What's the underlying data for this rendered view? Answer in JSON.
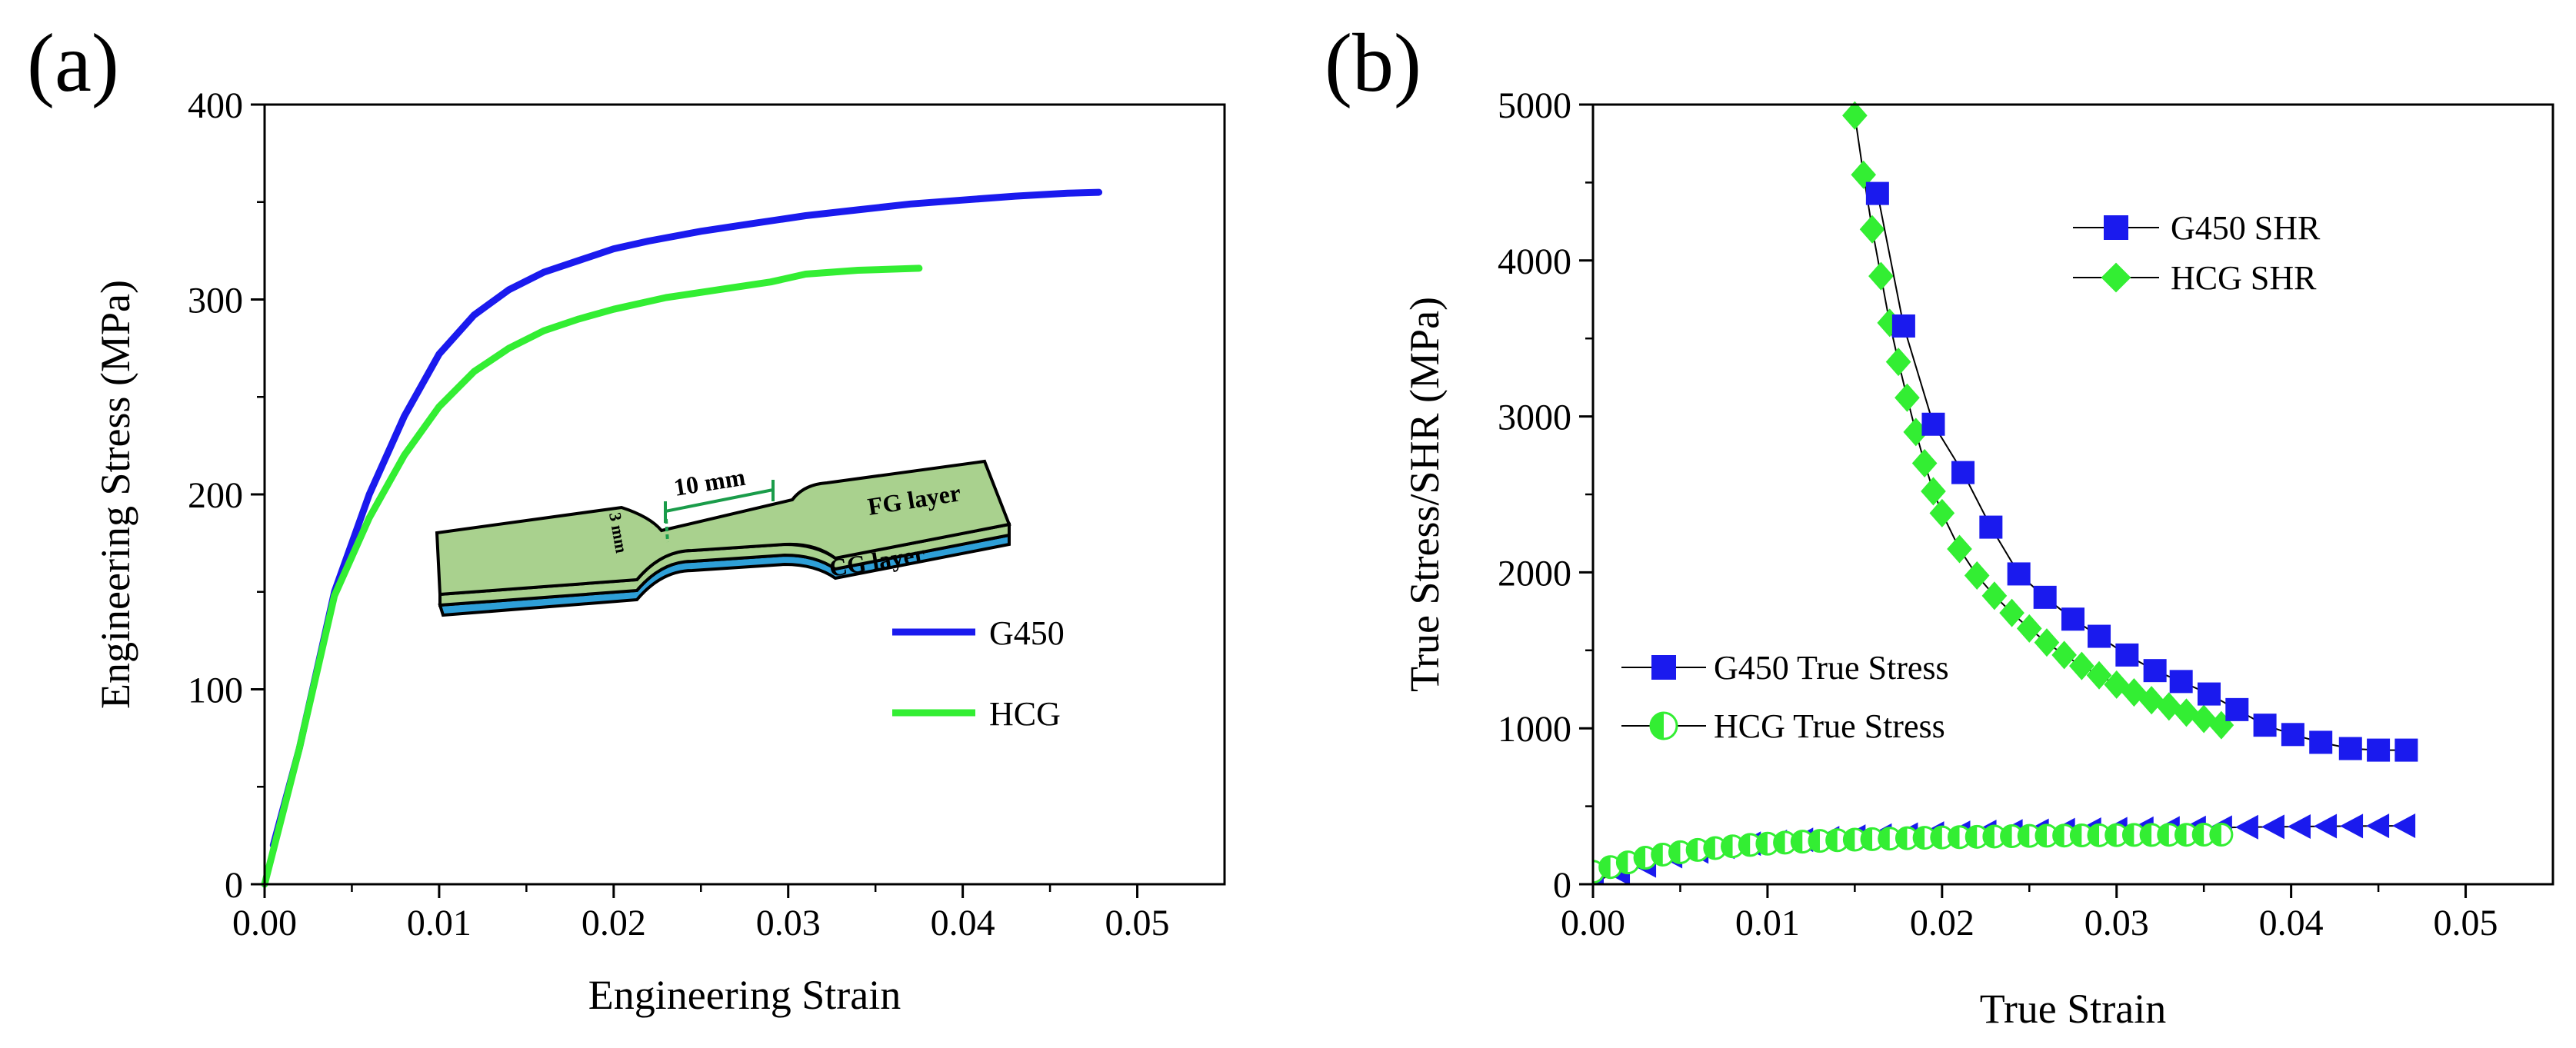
{
  "chart_data": [
    {
      "type": "line",
      "panel_label": "(a)",
      "xlabel": "Engineering Strain",
      "ylabel": "Engineering Stress (MPa)",
      "xlim": [
        0,
        0.055
      ],
      "ylim": [
        0,
        400
      ],
      "xticks": [
        "0.00",
        "0.01",
        "0.02",
        "0.03",
        "0.04",
        "0.05"
      ],
      "yticks": [
        "0",
        "100",
        "200",
        "300",
        "400"
      ],
      "legend_position": "bottom-right",
      "series": [
        {
          "name": "G450",
          "color": "#1a1aee",
          "points": [
            [
              0.0005,
              20
            ],
            [
              0.002,
              70
            ],
            [
              0.004,
              150
            ],
            [
              0.006,
              200
            ],
            [
              0.008,
              240
            ],
            [
              0.01,
              272
            ],
            [
              0.012,
              292
            ],
            [
              0.014,
              305
            ],
            [
              0.016,
              314
            ],
            [
              0.018,
              320
            ],
            [
              0.02,
              326
            ],
            [
              0.022,
              330
            ],
            [
              0.025,
              335
            ],
            [
              0.028,
              339
            ],
            [
              0.031,
              343
            ],
            [
              0.034,
              346
            ],
            [
              0.037,
              349
            ],
            [
              0.04,
              351
            ],
            [
              0.043,
              353
            ],
            [
              0.046,
              354.5
            ],
            [
              0.0478,
              355
            ]
          ]
        },
        {
          "name": "HCG",
          "color": "#33ee33",
          "points": [
            [
              0.0,
              0
            ],
            [
              0.002,
              70
            ],
            [
              0.004,
              148
            ],
            [
              0.006,
              188
            ],
            [
              0.008,
              220
            ],
            [
              0.01,
              245
            ],
            [
              0.012,
              263
            ],
            [
              0.014,
              275
            ],
            [
              0.016,
              284
            ],
            [
              0.018,
              290
            ],
            [
              0.02,
              295
            ],
            [
              0.023,
              301
            ],
            [
              0.026,
              305
            ],
            [
              0.029,
              309
            ],
            [
              0.031,
              313
            ],
            [
              0.034,
              315
            ],
            [
              0.0375,
              316
            ]
          ]
        }
      ],
      "inset": {
        "dimension_length": "10 mm",
        "dimension_width": "3 mm",
        "top_layer": "FG layer",
        "bottom_layer": "CG layer",
        "colors": {
          "fg": "#a9d18e",
          "cg": "#2e9fd8",
          "marker": "#1a9c4a"
        }
      }
    },
    {
      "type": "scatter",
      "panel_label": "(b)",
      "xlabel": "True Strain",
      "ylabel": "True Stress/SHR (MPa)",
      "xlim": [
        0,
        0.055
      ],
      "ylim": [
        0,
        5000
      ],
      "xticks": [
        "0.00",
        "0.01",
        "0.02",
        "0.03",
        "0.04",
        "0.05"
      ],
      "yticks": [
        "0",
        "1000",
        "2000",
        "3000",
        "4000",
        "5000"
      ],
      "series": [
        {
          "name": "G450 SHR",
          "marker": "square",
          "color": "#1a1aee",
          "legend_position": "top-center",
          "points": [
            [
              0.0163,
              4430
            ],
            [
              0.0178,
              3580
            ],
            [
              0.0195,
              2950
            ],
            [
              0.0212,
              2640
            ],
            [
              0.0228,
              2290
            ],
            [
              0.0244,
              1990
            ],
            [
              0.0259,
              1840
            ],
            [
              0.0275,
              1700
            ],
            [
              0.029,
              1590
            ],
            [
              0.0306,
              1470
            ],
            [
              0.0322,
              1370
            ],
            [
              0.0337,
              1300
            ],
            [
              0.0353,
              1220
            ],
            [
              0.0369,
              1120
            ],
            [
              0.0385,
              1020
            ],
            [
              0.0401,
              960
            ],
            [
              0.0417,
              910
            ],
            [
              0.0434,
              870
            ],
            [
              0.045,
              860
            ],
            [
              0.0466,
              860
            ]
          ]
        },
        {
          "name": "HCG SHR",
          "marker": "diamond",
          "color": "#33ee33",
          "legend_position": "top-center",
          "points": [
            [
              0.015,
              4930
            ],
            [
              0.0155,
              4550
            ],
            [
              0.016,
              4200
            ],
            [
              0.0165,
              3900
            ],
            [
              0.017,
              3600
            ],
            [
              0.0175,
              3350
            ],
            [
              0.018,
              3120
            ],
            [
              0.0185,
              2900
            ],
            [
              0.019,
              2700
            ],
            [
              0.0195,
              2520
            ],
            [
              0.02,
              2380
            ],
            [
              0.021,
              2150
            ],
            [
              0.022,
              1980
            ],
            [
              0.023,
              1850
            ],
            [
              0.024,
              1740
            ],
            [
              0.025,
              1640
            ],
            [
              0.026,
              1550
            ],
            [
              0.027,
              1470
            ],
            [
              0.028,
              1400
            ],
            [
              0.029,
              1340
            ],
            [
              0.03,
              1280
            ],
            [
              0.031,
              1230
            ],
            [
              0.032,
              1180
            ],
            [
              0.033,
              1140
            ],
            [
              0.034,
              1100
            ],
            [
              0.035,
              1060
            ],
            [
              0.036,
              1020
            ]
          ]
        },
        {
          "name": "G450 True Stress",
          "marker": "triangle-left",
          "color": "#1a1aee",
          "legend_position": "bottom-left",
          "points": [
            [
              0.0,
              20
            ],
            [
              0.0015,
              70
            ],
            [
              0.003,
              120
            ],
            [
              0.0045,
              180
            ],
            [
              0.006,
              210
            ],
            [
              0.0075,
              240
            ],
            [
              0.009,
              260
            ],
            [
              0.0105,
              272
            ],
            [
              0.012,
              285
            ],
            [
              0.0135,
              295
            ],
            [
              0.015,
              305
            ],
            [
              0.0165,
              312
            ],
            [
              0.018,
              318
            ],
            [
              0.0195,
              325
            ],
            [
              0.021,
              330
            ],
            [
              0.0225,
              335
            ],
            [
              0.024,
              339
            ],
            [
              0.0255,
              343
            ],
            [
              0.027,
              347
            ],
            [
              0.0285,
              350
            ],
            [
              0.03,
              353
            ],
            [
              0.0315,
              356
            ],
            [
              0.033,
              358
            ],
            [
              0.0345,
              361
            ],
            [
              0.036,
              363
            ],
            [
              0.0375,
              366
            ],
            [
              0.039,
              368
            ],
            [
              0.0405,
              370
            ],
            [
              0.042,
              372
            ],
            [
              0.0435,
              373
            ],
            [
              0.045,
              374
            ],
            [
              0.0465,
              375
            ]
          ]
        },
        {
          "name": "HCG True Stress",
          "marker": "half-circle",
          "color": "#33ee33",
          "legend_position": "bottom-left",
          "points": [
            [
              0.0,
              80
            ],
            [
              0.001,
              110
            ],
            [
              0.002,
              140
            ],
            [
              0.003,
              170
            ],
            [
              0.004,
              190
            ],
            [
              0.005,
              205
            ],
            [
              0.006,
              220
            ],
            [
              0.007,
              232
            ],
            [
              0.008,
              243
            ],
            [
              0.009,
              252
            ],
            [
              0.01,
              260
            ],
            [
              0.011,
              267
            ],
            [
              0.012,
              273
            ],
            [
              0.013,
              278
            ],
            [
              0.014,
              282
            ],
            [
              0.015,
              286
            ],
            [
              0.016,
              289
            ],
            [
              0.017,
              292
            ],
            [
              0.018,
              295
            ],
            [
              0.019,
              298
            ],
            [
              0.02,
              300
            ],
            [
              0.021,
              302
            ],
            [
              0.022,
              304
            ],
            [
              0.023,
              306
            ],
            [
              0.024,
              308
            ],
            [
              0.025,
              310
            ],
            [
              0.026,
              311
            ],
            [
              0.027,
              312
            ],
            [
              0.028,
              313
            ],
            [
              0.029,
              314
            ],
            [
              0.03,
              315
            ],
            [
              0.031,
              316
            ],
            [
              0.032,
              316
            ],
            [
              0.033,
              317
            ],
            [
              0.034,
              317
            ],
            [
              0.035,
              318
            ],
            [
              0.036,
              318
            ]
          ]
        }
      ]
    }
  ]
}
